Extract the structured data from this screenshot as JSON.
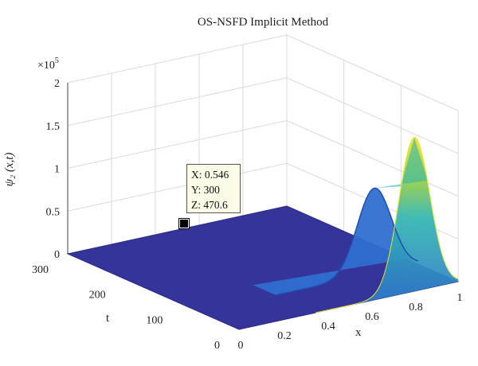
{
  "chart_data": {
    "type": "surface",
    "title": "OS-NSFD Implicit Method",
    "xlabel": "x",
    "ylabel": "t",
    "zlabel": "ψ₂ (x,t)",
    "z_multiplier_label": "×10",
    "z_multiplier_exp": "5",
    "xlim": [
      0,
      1
    ],
    "ylim": [
      0,
      300
    ],
    "zlim": [
      0,
      200000
    ],
    "x_ticks": [
      "0",
      "0.2",
      "0.4",
      "0.6",
      "0.8",
      "1"
    ],
    "y_ticks": [
      "0",
      "100",
      "200",
      "300"
    ],
    "z_ticks": [
      "0",
      "0.5",
      "1",
      "1.5",
      "2"
    ],
    "grid": true,
    "colormap": "parula",
    "surface_peak": {
      "x": 0.8,
      "t": 0,
      "z": 180000
    },
    "mid_ridge": {
      "x": 0.8,
      "t": 70,
      "z": 100000
    },
    "baseline_value": 0,
    "datatip": {
      "x_label": "X: 0.546",
      "y_label": "Y: 300",
      "z_label": "Z: 470.6"
    },
    "colors": {
      "floor": "#35349a",
      "peak": "#f5e72a",
      "mid": "#2fb6b0",
      "low": "#2f6fd0"
    }
  }
}
